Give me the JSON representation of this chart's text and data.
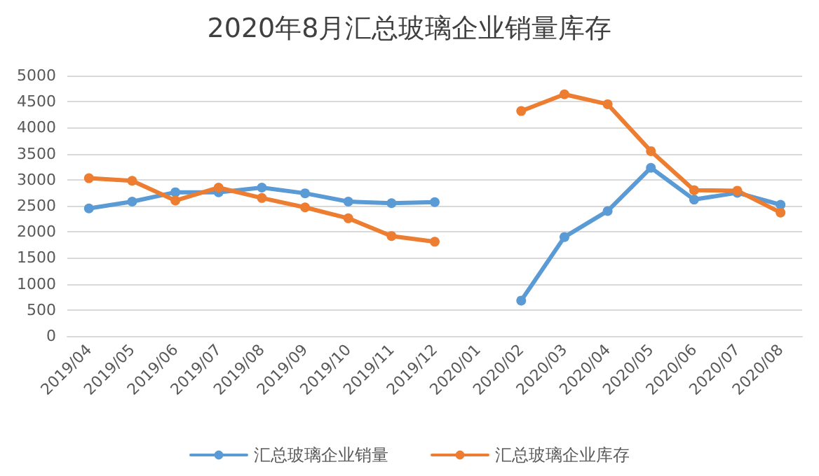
{
  "chart_data": {
    "type": "line",
    "title": "2020年8月汇总玻璃企业销量库存",
    "categories": [
      "2019/04",
      "2019/05",
      "2019/06",
      "2019/07",
      "2019/08",
      "2019/09",
      "2019/10",
      "2019/11",
      "2019/12",
      "2020/01",
      "2020/02",
      "2020/03",
      "2020/04",
      "2020/05",
      "2020/06",
      "2020/07",
      "2020/08"
    ],
    "series": [
      {
        "name": "汇总玻璃企业销量",
        "color": "#5b9bd5",
        "values": [
          2450,
          2580,
          2760,
          2760,
          2850,
          2740,
          2580,
          2550,
          2570,
          null,
          680,
          1900,
          2400,
          3230,
          2620,
          2750,
          2520
        ]
      },
      {
        "name": "汇总玻璃企业库存",
        "color": "#ed7d31",
        "values": [
          3030,
          2980,
          2600,
          2850,
          2650,
          2470,
          2260,
          1920,
          1810,
          null,
          4320,
          4640,
          4450,
          3550,
          2800,
          2790,
          2370
        ]
      }
    ],
    "ylim": [
      0,
      5000
    ],
    "yticks": [
      0,
      500,
      1000,
      1500,
      2000,
      2500,
      3000,
      3500,
      4000,
      4500,
      5000
    ],
    "grid": "y",
    "legend": "bottom",
    "marker": "circle",
    "line_style": "solid"
  }
}
